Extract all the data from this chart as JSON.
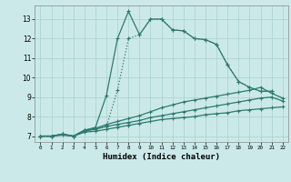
{
  "xlabel": "Humidex (Indice chaleur)",
  "bg_color": "#cce9e9",
  "grid_color": "#aed4d4",
  "line_color": "#2d7a6e",
  "xlim": [
    -0.5,
    22.5
  ],
  "ylim": [
    6.7,
    13.7
  ],
  "yticks": [
    7,
    8,
    9,
    10,
    11,
    12,
    13
  ],
  "xticks": [
    0,
    1,
    2,
    3,
    4,
    5,
    6,
    7,
    8,
    9,
    10,
    11,
    12,
    13,
    14,
    15,
    16,
    17,
    18,
    19,
    20,
    21,
    22
  ],
  "series": [
    {
      "x": [
        0,
        1,
        2,
        3,
        4,
        5,
        6,
        7,
        8,
        9,
        10,
        11,
        12,
        13,
        14,
        15,
        16,
        17,
        18,
        19,
        20,
        21,
        22
      ],
      "y": [
        7.0,
        7.0,
        7.05,
        7.0,
        7.2,
        7.25,
        7.35,
        7.45,
        7.55,
        7.65,
        7.75,
        7.85,
        7.9,
        7.95,
        8.0,
        8.1,
        8.15,
        8.2,
        8.3,
        8.35,
        8.4,
        8.45,
        8.5
      ],
      "style": "solid",
      "marker": "+"
    },
    {
      "x": [
        0,
        1,
        2,
        3,
        4,
        5,
        6,
        7,
        8,
        9,
        10,
        11,
        12,
        13,
        14,
        15,
        16,
        17,
        18,
        19,
        20,
        21,
        22
      ],
      "y": [
        7.0,
        7.0,
        7.1,
        7.0,
        7.25,
        7.35,
        7.5,
        7.6,
        7.7,
        7.8,
        7.95,
        8.05,
        8.15,
        8.25,
        8.35,
        8.45,
        8.55,
        8.65,
        8.75,
        8.85,
        8.95,
        9.0,
        8.8
      ],
      "style": "solid",
      "marker": "+"
    },
    {
      "x": [
        0,
        1,
        2,
        3,
        4,
        5,
        6,
        7,
        8,
        9,
        10,
        11,
        12,
        13,
        14,
        15,
        16,
        17,
        18,
        19,
        20,
        21,
        22
      ],
      "y": [
        7.0,
        7.0,
        7.1,
        7.0,
        7.3,
        7.4,
        7.6,
        7.75,
        7.9,
        8.05,
        8.25,
        8.45,
        8.6,
        8.75,
        8.85,
        8.95,
        9.05,
        9.15,
        9.25,
        9.35,
        9.5,
        9.2,
        8.95
      ],
      "style": "solid",
      "marker": "+"
    },
    {
      "x": [
        0,
        1,
        2,
        3,
        4,
        5,
        6,
        7,
        8,
        9,
        10,
        11,
        12,
        13,
        14,
        15,
        16,
        17,
        18,
        19,
        20,
        21
      ],
      "y": [
        7.0,
        7.0,
        7.1,
        7.0,
        7.3,
        7.4,
        7.5,
        9.35,
        12.0,
        12.2,
        13.0,
        13.0,
        12.45,
        12.4,
        12.0,
        11.95,
        11.7,
        10.65,
        9.8,
        9.5,
        9.3,
        9.3
      ],
      "style": "dotted",
      "marker": "+"
    },
    {
      "x": [
        0,
        1,
        2,
        3,
        4,
        5,
        6,
        7,
        8,
        9,
        10,
        11,
        12,
        13,
        14,
        15,
        16,
        17,
        18,
        19,
        20,
        21
      ],
      "y": [
        7.0,
        7.0,
        7.1,
        7.0,
        7.3,
        7.45,
        9.1,
        12.0,
        13.4,
        12.2,
        13.0,
        13.0,
        12.45,
        12.4,
        12.0,
        11.95,
        11.7,
        10.65,
        9.8,
        9.5,
        9.3,
        9.3
      ],
      "style": "solid",
      "marker": "+"
    }
  ]
}
